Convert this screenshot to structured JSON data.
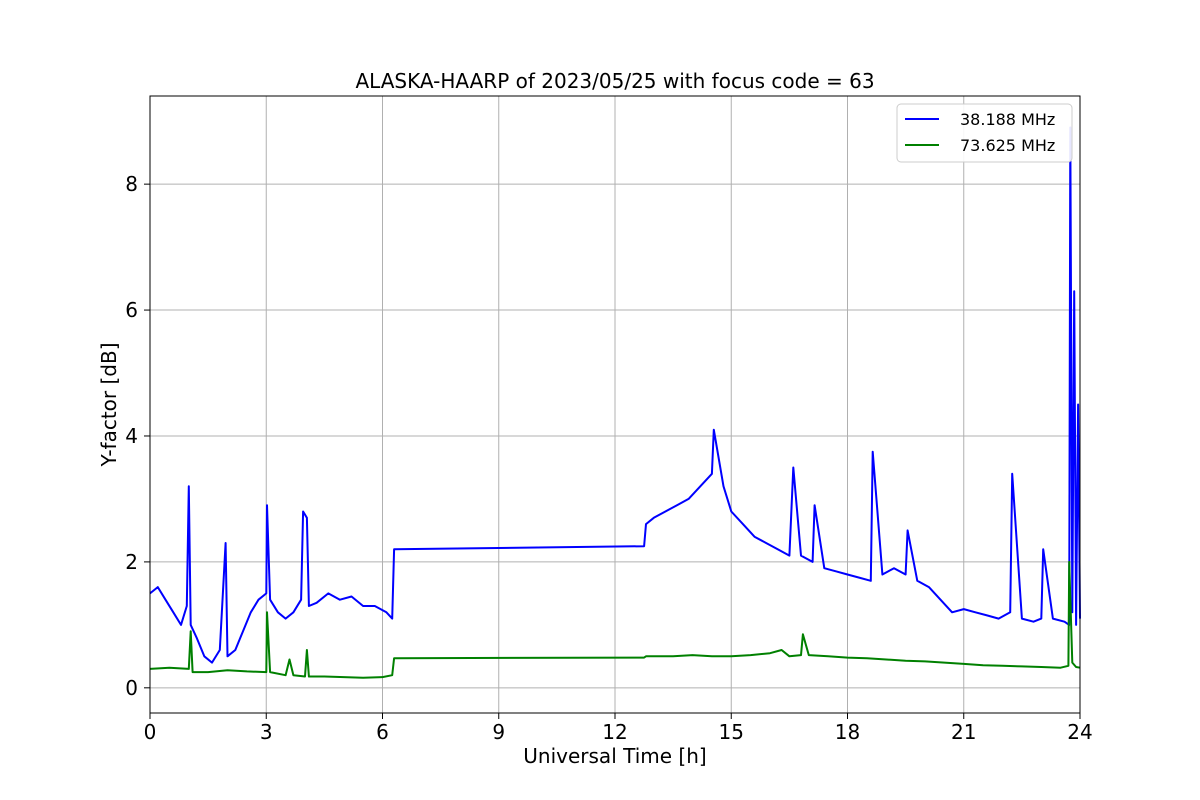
{
  "chart_data": {
    "type": "line",
    "title": "ALASKA-HAARP of 2023/05/25 with focus code = 63",
    "xlabel": "Universal Time [h]",
    "ylabel": "Y-factor [dB]",
    "xlim": [
      0,
      24
    ],
    "ylim": [
      -0.4,
      9.4
    ],
    "xticks": [
      0,
      3,
      6,
      9,
      12,
      15,
      18,
      21,
      24
    ],
    "xtick_labels": [
      "0",
      "3",
      "6",
      "9",
      "12",
      "15",
      "18",
      "21",
      "24"
    ],
    "yticks": [
      0,
      2,
      4,
      6,
      8
    ],
    "ytick_labels": [
      "0",
      "2",
      "4",
      "6",
      "8"
    ],
    "grid": true,
    "legend_position": "top-right",
    "series": [
      {
        "name": "38.188 MHz",
        "color": "#0000ff",
        "x": [
          0,
          0.2,
          0.4,
          0.6,
          0.8,
          0.95,
          1.0,
          1.05,
          1.2,
          1.4,
          1.6,
          1.8,
          1.95,
          2.0,
          2.2,
          2.4,
          2.6,
          2.8,
          3.0,
          3.02,
          3.1,
          3.3,
          3.5,
          3.7,
          3.9,
          3.95,
          4.05,
          4.1,
          4.3,
          4.6,
          4.9,
          5.2,
          5.5,
          5.8,
          6.1,
          6.25,
          6.3,
          12.75,
          12.8,
          13.0,
          13.3,
          13.6,
          13.9,
          14.2,
          14.5,
          14.55,
          14.8,
          15.0,
          15.3,
          15.6,
          15.9,
          16.2,
          16.5,
          16.6,
          16.8,
          17.1,
          17.15,
          17.4,
          17.7,
          18.0,
          18.3,
          18.6,
          18.65,
          18.9,
          19.2,
          19.5,
          19.55,
          19.8,
          20.1,
          20.4,
          20.7,
          21.0,
          21.3,
          21.6,
          21.9,
          22.2,
          22.25,
          22.5,
          22.8,
          23.0,
          23.05,
          23.3,
          23.6,
          23.72,
          23.75,
          23.8,
          23.85,
          23.9,
          23.95,
          24.0
        ],
        "y": [
          1.5,
          1.6,
          1.4,
          1.2,
          1.0,
          1.3,
          3.2,
          1.0,
          0.8,
          0.5,
          0.4,
          0.6,
          2.3,
          0.5,
          0.6,
          0.9,
          1.2,
          1.4,
          1.5,
          2.9,
          1.4,
          1.2,
          1.1,
          1.2,
          1.4,
          2.8,
          2.7,
          1.3,
          1.35,
          1.5,
          1.4,
          1.45,
          1.3,
          1.3,
          1.2,
          1.1,
          2.2,
          2.25,
          2.6,
          2.7,
          2.8,
          2.9,
          3.0,
          3.2,
          3.4,
          4.1,
          3.2,
          2.8,
          2.6,
          2.4,
          2.3,
          2.2,
          2.1,
          3.5,
          2.1,
          2.0,
          2.9,
          1.9,
          1.85,
          1.8,
          1.75,
          1.7,
          3.75,
          1.8,
          1.9,
          1.8,
          2.5,
          1.7,
          1.6,
          1.4,
          1.2,
          1.25,
          1.2,
          1.15,
          1.1,
          1.2,
          3.4,
          1.1,
          1.05,
          1.1,
          2.2,
          1.1,
          1.05,
          1.0,
          8.9,
          1.2,
          6.3,
          1.0,
          4.5,
          1.1
        ]
      },
      {
        "name": "73.625 MHz",
        "color": "#008000",
        "x": [
          0,
          0.5,
          1.0,
          1.05,
          1.1,
          1.5,
          2.0,
          2.5,
          3.0,
          3.02,
          3.1,
          3.5,
          3.6,
          3.7,
          4.0,
          4.05,
          4.1,
          4.5,
          5.0,
          5.5,
          6.0,
          6.25,
          6.3,
          12.75,
          12.8,
          13.5,
          14.0,
          14.5,
          15.0,
          15.5,
          16.0,
          16.3,
          16.5,
          16.8,
          16.85,
          17.0,
          17.5,
          18.0,
          18.5,
          19.0,
          19.5,
          20.0,
          20.5,
          21.0,
          21.5,
          22.0,
          22.5,
          23.0,
          23.5,
          23.7,
          23.72,
          23.8,
          23.9,
          24.0
        ],
        "y": [
          0.3,
          0.32,
          0.3,
          0.9,
          0.25,
          0.25,
          0.28,
          0.26,
          0.25,
          1.2,
          0.25,
          0.2,
          0.45,
          0.2,
          0.18,
          0.6,
          0.18,
          0.18,
          0.17,
          0.16,
          0.17,
          0.2,
          0.47,
          0.48,
          0.5,
          0.5,
          0.52,
          0.5,
          0.5,
          0.52,
          0.55,
          0.6,
          0.5,
          0.52,
          0.85,
          0.52,
          0.5,
          0.48,
          0.47,
          0.45,
          0.43,
          0.42,
          0.4,
          0.38,
          0.36,
          0.35,
          0.34,
          0.33,
          0.32,
          0.35,
          2.0,
          0.4,
          0.33,
          0.32
        ]
      }
    ]
  }
}
